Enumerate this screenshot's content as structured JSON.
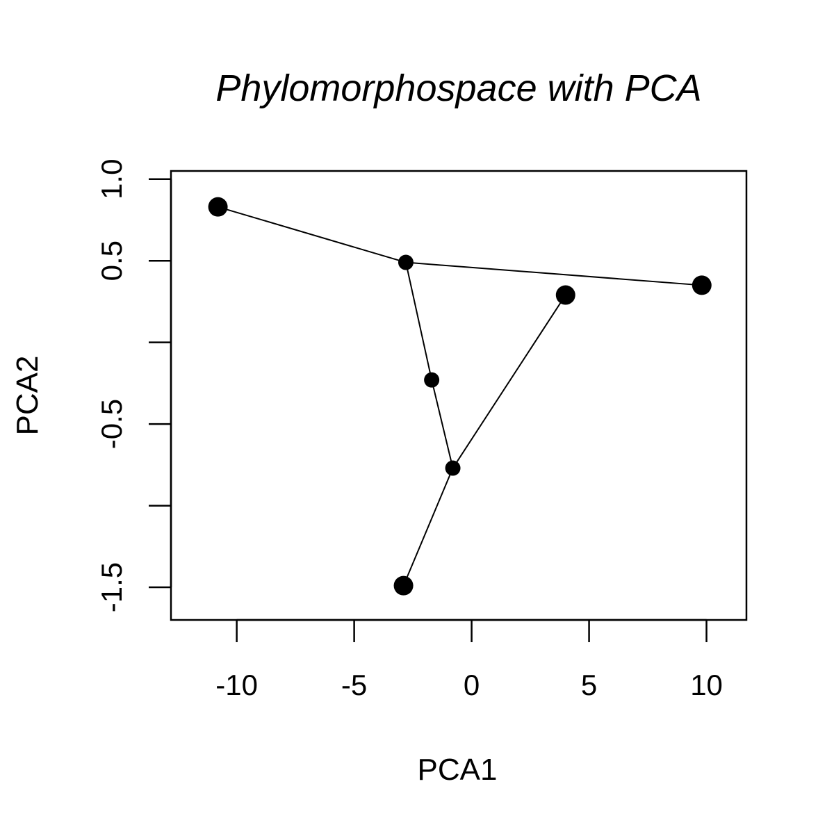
{
  "chart_data": {
    "type": "scatter",
    "title": "Phylomorphospace with PCA",
    "xlabel": "PCA1",
    "ylabel": "PCA2",
    "xlim": [
      -12.8,
      11.7
    ],
    "ylim": [
      -1.7,
      1.05
    ],
    "x_ticks": [
      -10,
      -5,
      0,
      5,
      10
    ],
    "x_tick_labels": [
      "-10",
      "-5",
      "0",
      "5",
      "10"
    ],
    "y_ticks": [
      -1.5,
      -1.0,
      -0.5,
      0.0,
      0.5,
      1.0
    ],
    "y_tick_labels": [
      "-1.5",
      "",
      "-0.5",
      "",
      "0.5",
      "1.0"
    ],
    "grid": false,
    "tips": [
      {
        "x": -10.8,
        "y": 0.83
      },
      {
        "x": 9.8,
        "y": 0.35
      },
      {
        "x": 4.0,
        "y": 0.29
      },
      {
        "x": -2.9,
        "y": -1.49
      }
    ],
    "nodes": [
      {
        "x": -2.8,
        "y": 0.49
      },
      {
        "x": -1.7,
        "y": -0.23
      },
      {
        "x": -0.8,
        "y": -0.77
      }
    ],
    "edges": [
      [
        {
          "x": -10.8,
          "y": 0.83
        },
        {
          "x": -2.8,
          "y": 0.49
        }
      ],
      [
        {
          "x": -2.8,
          "y": 0.49
        },
        {
          "x": 9.8,
          "y": 0.35
        }
      ],
      [
        {
          "x": -2.8,
          "y": 0.49
        },
        {
          "x": -1.7,
          "y": -0.23
        }
      ],
      [
        {
          "x": -1.7,
          "y": -0.23
        },
        {
          "x": -0.8,
          "y": -0.77
        }
      ],
      [
        {
          "x": -0.8,
          "y": -0.77
        },
        {
          "x": 4.0,
          "y": 0.29
        }
      ],
      [
        {
          "x": -0.8,
          "y": -0.77
        },
        {
          "x": -2.9,
          "y": -1.49
        }
      ]
    ],
    "colors": {
      "points": "#000000",
      "lines": "#000000"
    }
  }
}
